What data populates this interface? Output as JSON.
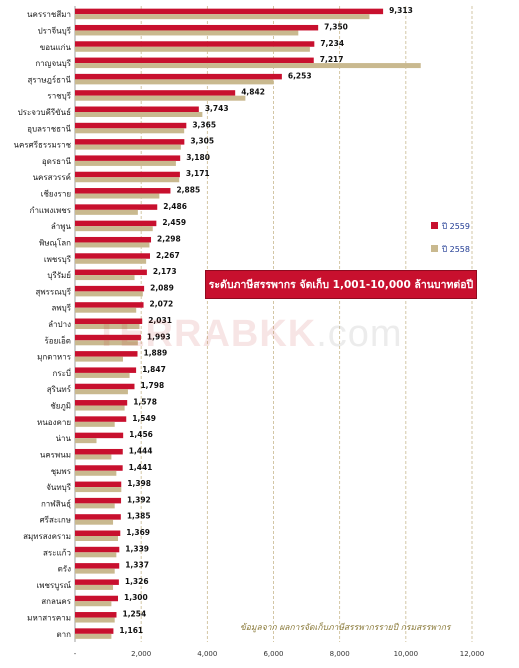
{
  "banner_text": "ระดับภาษีสรรพากร จัดเก็บ 1,001-10,000 ล้านบาทต่อปี",
  "source_text": "ข้อมูลจาก ผลการจัดเก็บภาษีสรรพากรรายปี กรมสรรพากร",
  "watermark": {
    "part1": "TERRA",
    "part2": "BKK",
    "part3": ".com"
  },
  "colors": {
    "series_2559": "#c8102e",
    "series_2558": "#c9b98f",
    "grid": "#c9b98f"
  },
  "chart_data": {
    "type": "bar",
    "orientation": "horizontal",
    "xlim": [
      0,
      12000
    ],
    "xticks": [
      "-",
      "2,000",
      "4,000",
      "6,000",
      "8,000",
      "10,000",
      "12,000"
    ],
    "legend_position": "right",
    "categories": [
      "นครราชสีมา",
      "ปราจีนบุรี",
      "ขอนแก่น",
      "กาญจนบุรี",
      "สุราษฎร์ธานี",
      "ราชบุรี",
      "ประจวบคีรีขันธ์",
      "อุบลราชธานี",
      "นครศรีธรรมราช",
      "อุดรธานี",
      "นครสวรรค์",
      "เชียงราย",
      "กำแพงเพชร",
      "ลำพูน",
      "พิษณุโลก",
      "เพชรบุรี",
      "บุรีรัมย์",
      "สุพรรณบุรี",
      "ลพบุรี",
      "ลำปาง",
      "ร้อยเอ็ด",
      "มุกดาหาร",
      "กระบี่",
      "สุรินทร์",
      "ชัยภูมิ",
      "หนองคาย",
      "น่าน",
      "นครพนม",
      "ชุมพร",
      "จันทบุรี",
      "กาฬสินธุ์",
      "ศรีสะเกษ",
      "สมุทรสงคราม",
      "สระแก้ว",
      "ตรัง",
      "เพชรบูรณ์",
      "สกลนคร",
      "มหาสารคาม",
      "ตาก"
    ],
    "series": [
      {
        "name": "ปี 2559",
        "values": [
          9313,
          7350,
          7234,
          7217,
          6253,
          4842,
          3743,
          3365,
          3305,
          3180,
          3171,
          2885,
          2486,
          2459,
          2298,
          2267,
          2173,
          2089,
          2072,
          2031,
          1993,
          1889,
          1847,
          1798,
          1578,
          1549,
          1456,
          1444,
          1441,
          1398,
          1392,
          1385,
          1369,
          1339,
          1337,
          1326,
          1300,
          1254,
          1161
        ]
      },
      {
        "name": "ปี 2558",
        "values": [
          8900,
          6750,
          7100,
          10450,
          6000,
          5150,
          3850,
          3300,
          3200,
          3050,
          3150,
          2550,
          1900,
          2350,
          2250,
          2150,
          1800,
          2050,
          1850,
          1950,
          1900,
          1450,
          1650,
          1600,
          1500,
          1200,
          650,
          1100,
          1250,
          1400,
          1200,
          1150,
          1300,
          1250,
          1200,
          1150,
          1100,
          1200,
          1100
        ]
      }
    ],
    "value_labels": [
      "9,313",
      "7,350",
      "7,234",
      "7,217",
      "6,253",
      "4,842",
      "3,743",
      "3,365",
      "3,305",
      "3,180",
      "3,171",
      "2,885",
      "2,486",
      "2,459",
      "2,298",
      "2,267",
      "2,173",
      "2,089",
      "2,072",
      "2,031",
      "1,993",
      "1,889",
      "1,847",
      "1,798",
      "1,578",
      "1,549",
      "1,456",
      "1,444",
      "1,441",
      "1,398",
      "1,392",
      "1,385",
      "1,369",
      "1,339",
      "1,337",
      "1,326",
      "1,300",
      "1,254",
      "1,161"
    ]
  }
}
